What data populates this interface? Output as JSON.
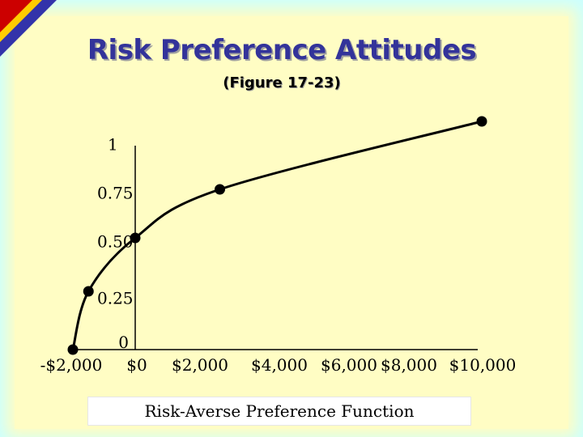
{
  "slide": {
    "title": "Risk Preference Attitudes",
    "subtitle": "(Figure 17-23)",
    "caption": "Risk-Averse Preference Function",
    "colors": {
      "background": "#ccffff",
      "panel": "#fffdc4",
      "title": "#33339a"
    }
  },
  "chart_data": {
    "type": "line",
    "title": "",
    "xlabel": "",
    "ylabel": "",
    "x_tick_labels": [
      "-$2,000",
      "$0",
      "$2,000",
      "$4,000",
      "$6,000",
      "$8,000",
      "$10,000"
    ],
    "y_tick_labels": [
      "0",
      "0.25",
      "0.50",
      "0.75",
      "1"
    ],
    "xlim": [
      -2000,
      10000
    ],
    "ylim": [
      0,
      1
    ],
    "series": [
      {
        "points": [
          {
            "x": -2000,
            "y": 0
          },
          {
            "x": -1500,
            "y": 0.25
          },
          {
            "x": 0,
            "y": 0.5
          },
          {
            "x": 2500,
            "y": 0.77
          },
          {
            "x": 10000,
            "y": 1.07
          }
        ]
      }
    ],
    "grid": false,
    "legend": "none"
  }
}
